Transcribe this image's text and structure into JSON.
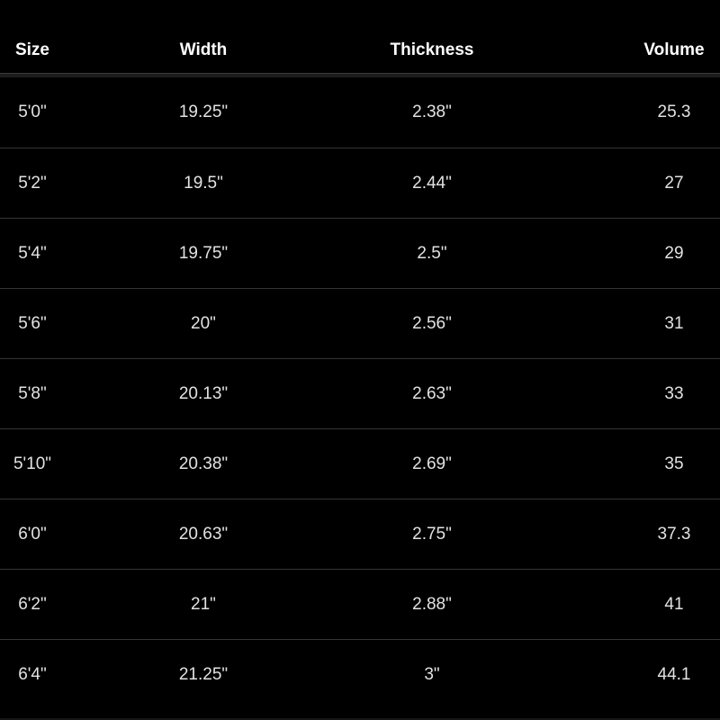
{
  "chart_data": {
    "type": "table",
    "columns": [
      "Size",
      "Width",
      "Thickness",
      "Volume"
    ],
    "rows": [
      [
        "5'0\"",
        "19.25\"",
        "2.38\"",
        "25.3"
      ],
      [
        "5'2\"",
        "19.5\"",
        "2.44\"",
        "27"
      ],
      [
        "5'4\"",
        "19.75\"",
        "2.5\"",
        "29"
      ],
      [
        "5'6\"",
        "20\"",
        "2.56\"",
        "31"
      ],
      [
        "5'8\"",
        "20.13\"",
        "2.63\"",
        "33"
      ],
      [
        "5'10\"",
        "20.38\"",
        "2.69\"",
        "35"
      ],
      [
        "6'0\"",
        "20.63\"",
        "2.75\"",
        "37.3"
      ],
      [
        "6'2\"",
        "21\"",
        "2.88\"",
        "41"
      ],
      [
        "6'4\"",
        "21.25\"",
        "3\"",
        "44.1"
      ]
    ],
    "layout": {
      "grid": "horizontal-row-separators",
      "header_position": "top"
    }
  },
  "colors": {
    "background": "#000000",
    "header_text": "#ffffff",
    "cell_text": "#e2e2e2",
    "row_separator": "#343434",
    "header_divider": "#1c1c1c"
  }
}
